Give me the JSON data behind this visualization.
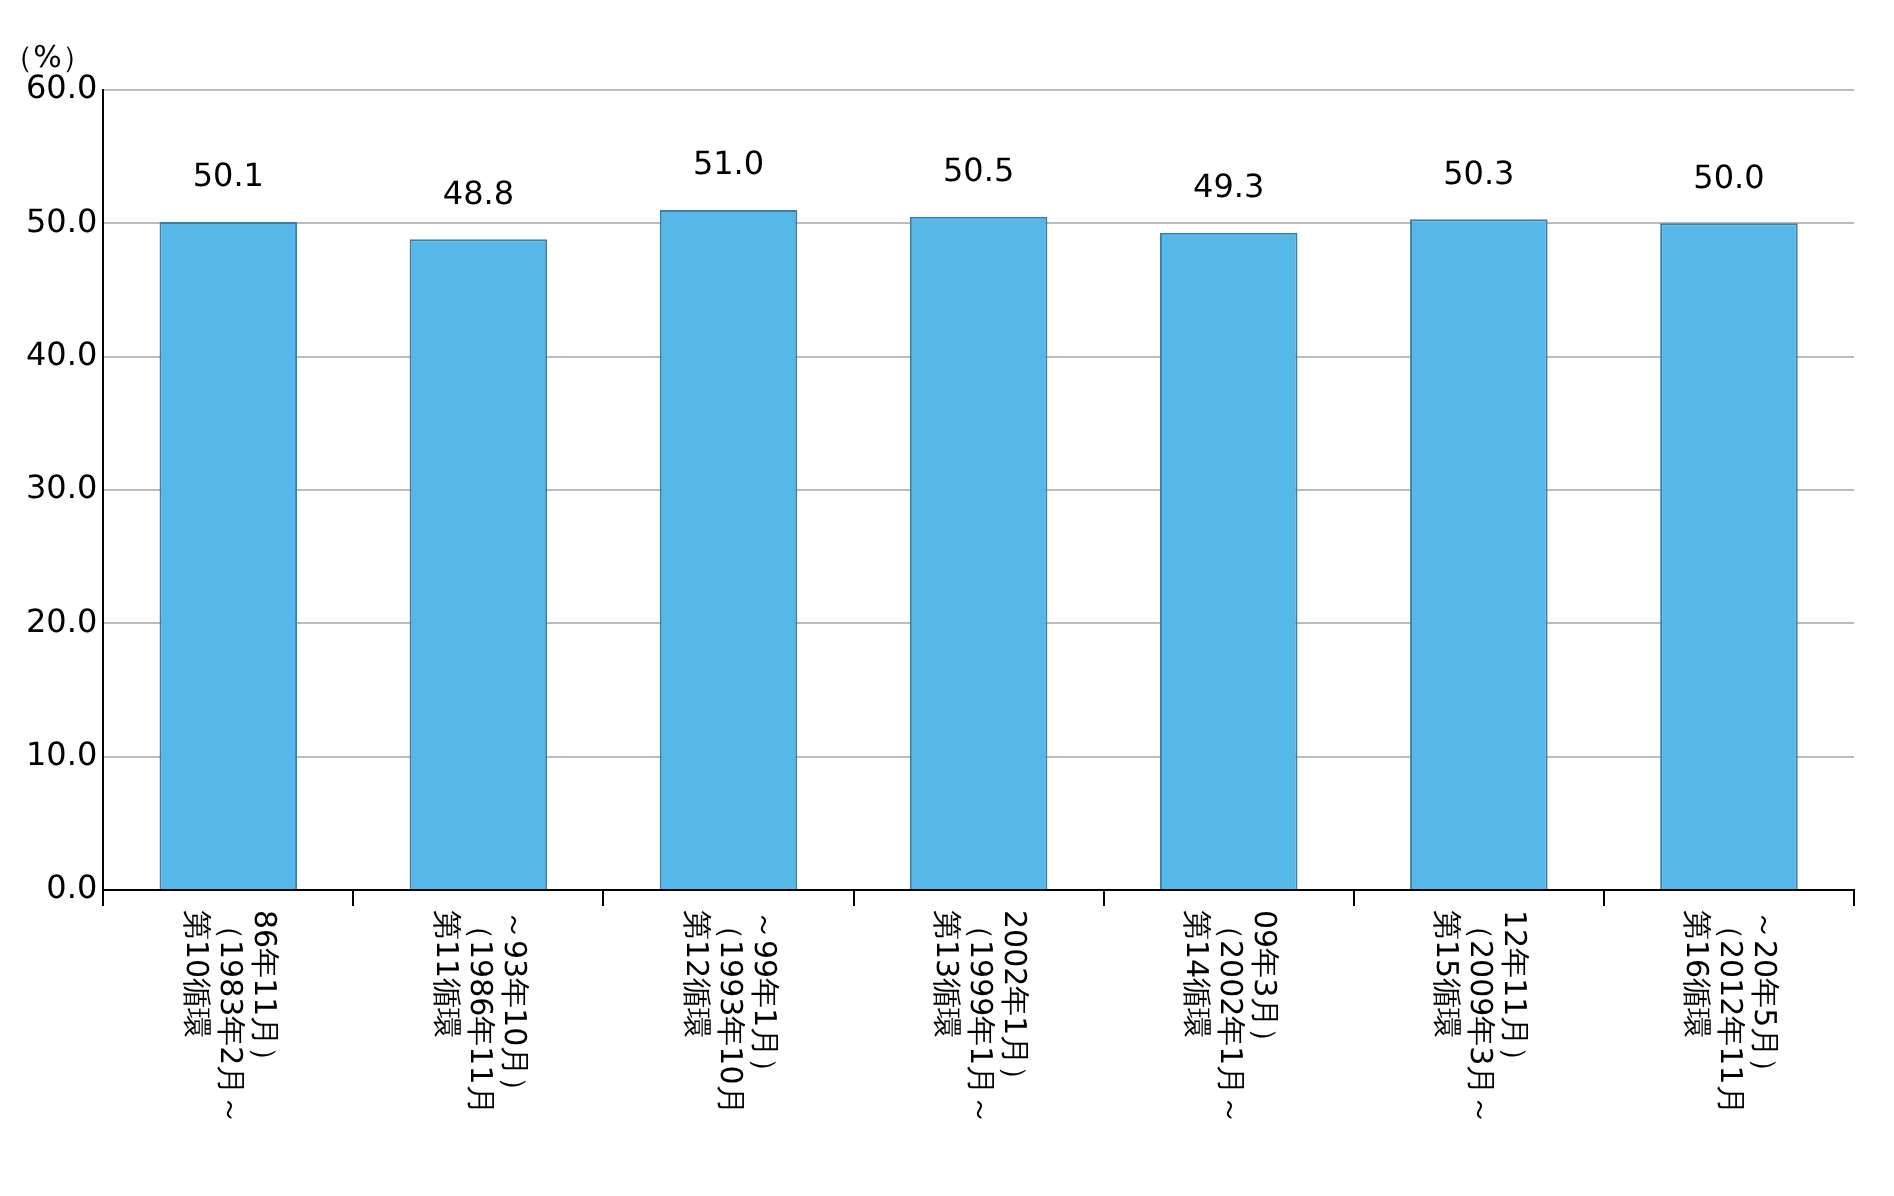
{
  "chart_data": {
    "type": "bar",
    "ylabel": "（%）",
    "categories": [
      "第10循環（1983年2月～86年11月）",
      "第11循環（1986年11月～93年10月）",
      "第12循環（1993年10月～99年1月）",
      "第13循環（1999年1月～2002年1月）",
      "第14循環（2002年1月～09年3月）",
      "第15循環（2009年3月～12年11月）",
      "第16循環（2012年11月～20年5月）"
    ],
    "values": [
      50.1,
      48.8,
      51.0,
      50.5,
      49.3,
      50.3,
      50.0
    ],
    "value_labels": [
      "50.1",
      "48.8",
      "51.0",
      "50.5",
      "49.3",
      "50.3",
      "50.0"
    ],
    "color": "#55b8e8",
    "ylim": [
      0,
      60
    ],
    "yticks": [
      {
        "value": 0,
        "label": "0.0"
      },
      {
        "value": 10,
        "label": "10.0"
      },
      {
        "value": 20,
        "label": "20.0"
      },
      {
        "value": 30,
        "label": "30.0"
      },
      {
        "value": 40,
        "label": "40.0"
      },
      {
        "value": 50,
        "label": "50.0"
      },
      {
        "value": 60,
        "label": "60.0"
      }
    ],
    "grid": "y",
    "legend": false
  }
}
